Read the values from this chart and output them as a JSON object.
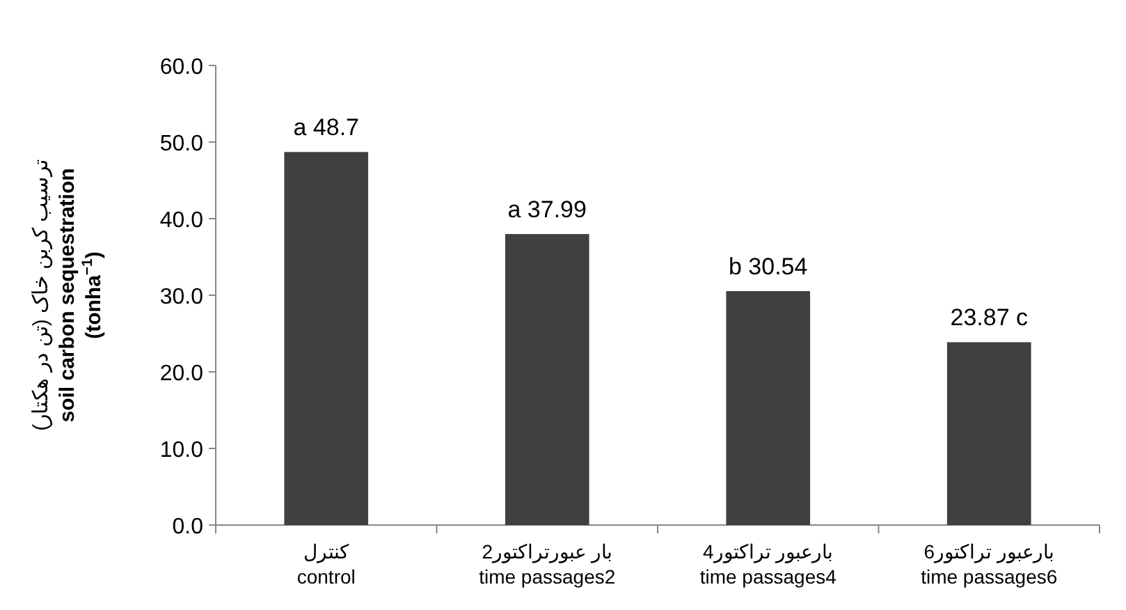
{
  "chart_data": {
    "type": "bar",
    "ylabel": "ترسیب کربن خاک (تن در هکتار)\nsoil carbon sequestration\n(tonha$^{−1}$)",
    "categories": [
      "کنترل\ncontrol",
      "2بار عبورتراکتور\ntime passages2",
      "4بارعبور تراکتور\ntime passages4",
      "6بارعبور تراکتور\ntime passages6"
    ],
    "values": [
      48.7,
      37.99,
      30.54,
      23.87
    ],
    "value_labels": [
      "a 48.7",
      "a 37.99",
      "b 30.54",
      "23.87 c"
    ],
    "color": "#404040",
    "ylim": [
      0,
      60
    ],
    "yticks": [
      {
        "value": 0,
        "label": "0.0"
      },
      {
        "value": 10,
        "label": "10.0"
      },
      {
        "value": 20,
        "label": "20.0"
      },
      {
        "value": 30,
        "label": "30.0"
      },
      {
        "value": 40,
        "label": "40.0"
      },
      {
        "value": 50,
        "label": "50.0"
      },
      {
        "value": 60,
        "label": "60.0"
      }
    ]
  }
}
